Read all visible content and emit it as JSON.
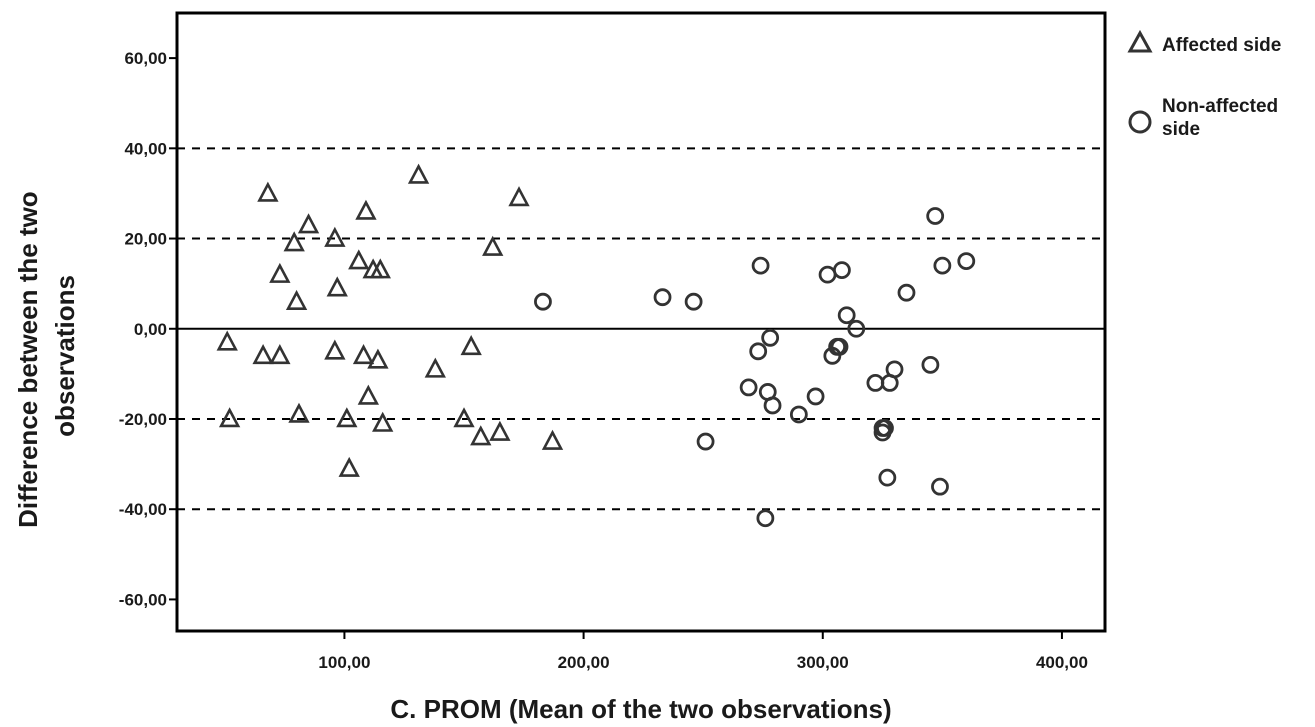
{
  "chart_data": {
    "type": "scatter",
    "title": "",
    "xlabel": "C. PROM (Mean of the two observations)",
    "ylabel_lines": [
      "Difference between the two",
      "observations"
    ],
    "xlim": [
      30,
      418
    ],
    "ylim": [
      -67,
      70
    ],
    "x_ticks": [
      100,
      200,
      300,
      400
    ],
    "x_tick_labels": [
      "100,00",
      "200,00",
      "300,00",
      "400,00"
    ],
    "y_ticks": [
      60,
      40,
      20,
      0,
      -20,
      -40,
      -60
    ],
    "y_tick_labels": [
      "60,00",
      "40,00",
      "20,00",
      "0,00",
      "-20,00",
      "-40,00",
      "-60,00"
    ],
    "reference_lines": {
      "solid": [
        0
      ],
      "dashed": [
        40,
        20,
        -20,
        -40
      ]
    },
    "legend": {
      "placement": "right",
      "entries": [
        "Affected side",
        "Non-affected side"
      ]
    },
    "colors": {
      "marker": "#333333",
      "axis": "#000000"
    },
    "series": [
      {
        "name": "Affected side",
        "marker": "triangle",
        "points": [
          [
            51,
            -3
          ],
          [
            52,
            -20
          ],
          [
            66,
            -6
          ],
          [
            68,
            30
          ],
          [
            73,
            -6
          ],
          [
            73,
            12
          ],
          [
            79,
            19
          ],
          [
            80,
            6
          ],
          [
            81,
            -19
          ],
          [
            85,
            23
          ],
          [
            96,
            20
          ],
          [
            96,
            -5
          ],
          [
            97,
            9
          ],
          [
            101,
            -20
          ],
          [
            102,
            -31
          ],
          [
            106,
            15
          ],
          [
            108,
            -6
          ],
          [
            109,
            26
          ],
          [
            110,
            -15
          ],
          [
            112,
            13
          ],
          [
            114,
            -7
          ],
          [
            115,
            13
          ],
          [
            116,
            -21
          ],
          [
            131,
            34
          ],
          [
            138,
            -9
          ],
          [
            150,
            -20
          ],
          [
            153,
            -4
          ],
          [
            157,
            -24
          ],
          [
            162,
            18
          ],
          [
            165,
            -23
          ],
          [
            173,
            29
          ],
          [
            187,
            -25
          ]
        ]
      },
      {
        "name": "Non-affected side",
        "marker": "circle",
        "points": [
          [
            183,
            6
          ],
          [
            233,
            7
          ],
          [
            246,
            6
          ],
          [
            251,
            -25
          ],
          [
            269,
            -13
          ],
          [
            273,
            -5
          ],
          [
            274,
            14
          ],
          [
            276,
            -42
          ],
          [
            277,
            -14
          ],
          [
            278,
            -2
          ],
          [
            279,
            -17
          ],
          [
            290,
            -19
          ],
          [
            297,
            -15
          ],
          [
            302,
            12
          ],
          [
            304,
            -6
          ],
          [
            306,
            -4
          ],
          [
            307,
            -4
          ],
          [
            308,
            13
          ],
          [
            310,
            3
          ],
          [
            314,
            0
          ],
          [
            322,
            -12
          ],
          [
            325,
            -23
          ],
          [
            325,
            -22
          ],
          [
            326,
            -22
          ],
          [
            327,
            -33
          ],
          [
            328,
            -12
          ],
          [
            330,
            -9
          ],
          [
            335,
            8
          ],
          [
            345,
            -8
          ],
          [
            347,
            25
          ],
          [
            349,
            -35
          ],
          [
            350,
            14
          ],
          [
            360,
            15
          ]
        ]
      }
    ]
  }
}
